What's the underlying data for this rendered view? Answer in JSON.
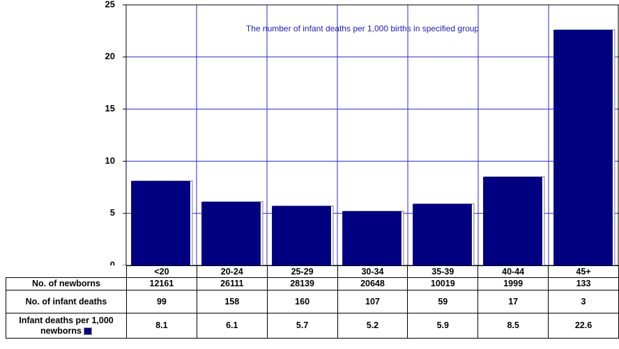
{
  "chart_data": {
    "type": "bar",
    "annotation": "The number of infant deaths per 1,000 births in specified group",
    "categories": [
      "<20",
      "20-24",
      "25-29",
      "30-34",
      "35-39",
      "40-44",
      "45+"
    ],
    "series": [
      {
        "name": "Infant deaths per 1,000 newborns",
        "color": "#000080",
        "values": [
          8.1,
          6.1,
          5.7,
          5.2,
          5.9,
          8.5,
          22.6
        ]
      }
    ],
    "ylim": [
      0,
      25
    ],
    "yticks": [
      0,
      5,
      10,
      15,
      20,
      25
    ],
    "grid": true,
    "table": {
      "rows": [
        {
          "label": "No. of newborns",
          "values": [
            12161,
            26111,
            28139,
            20648,
            10019,
            1999,
            133
          ]
        },
        {
          "label": "No. of infant deaths",
          "values": [
            99,
            158,
            160,
            107,
            59,
            17,
            3
          ]
        }
      ]
    }
  }
}
